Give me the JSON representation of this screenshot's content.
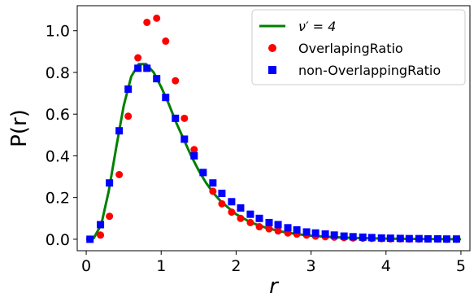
{
  "chart_data": {
    "type": "scatter",
    "xlabel": "r",
    "ylabel": "P(r)",
    "xlim": [
      -0.12,
      5.12
    ],
    "ylim": [
      -0.055,
      1.12
    ],
    "xticks": [
      0,
      1,
      2,
      3,
      4,
      5
    ],
    "xtick_labels": [
      "0",
      "1",
      "2",
      "3",
      "4",
      "5"
    ],
    "yticks": [
      0.0,
      0.2,
      0.4,
      0.6,
      0.8,
      1.0
    ],
    "ytick_labels": [
      "0.0",
      "0.2",
      "0.4",
      "0.6",
      "0.8",
      "1.0"
    ],
    "grid": false,
    "legend_position": "top-right",
    "series": [
      {
        "name": "ν′ = 4",
        "kind": "line",
        "color": "#008000",
        "x": [
          0.0,
          0.1,
          0.2,
          0.3,
          0.4,
          0.5,
          0.6,
          0.7,
          0.8,
          0.9,
          1.0,
          1.1,
          1.2,
          1.3,
          1.4,
          1.5,
          1.6,
          1.7,
          1.8,
          1.9,
          2.0,
          2.2,
          2.4,
          2.6,
          2.8,
          3.0,
          3.3,
          3.6,
          4.0,
          4.5,
          5.0
        ],
        "y": [
          0.0,
          0.005,
          0.07,
          0.23,
          0.44,
          0.64,
          0.78,
          0.84,
          0.84,
          0.8,
          0.73,
          0.65,
          0.56,
          0.48,
          0.4,
          0.33,
          0.27,
          0.22,
          0.18,
          0.15,
          0.12,
          0.08,
          0.055,
          0.037,
          0.025,
          0.017,
          0.01,
          0.006,
          0.003,
          0.001,
          0.0
        ]
      },
      {
        "name": "OverlapingRatio",
        "kind": "circle",
        "color": "#ff0000",
        "x": [
          0.05,
          0.19,
          0.31,
          0.44,
          0.56,
          0.69,
          0.81,
          0.94,
          1.06,
          1.19,
          1.31,
          1.44,
          1.56,
          1.69,
          1.81,
          1.94,
          2.06,
          2.19,
          2.31,
          2.44,
          2.56,
          2.69,
          2.81,
          2.94,
          3.06,
          3.19,
          3.31,
          3.44,
          3.56,
          3.69,
          3.81,
          3.94,
          4.06,
          4.19,
          4.31,
          4.44,
          4.56,
          4.69,
          4.81,
          4.94
        ],
        "y": [
          0.0,
          0.02,
          0.11,
          0.31,
          0.59,
          0.87,
          1.04,
          1.06,
          0.95,
          0.76,
          0.58,
          0.43,
          0.32,
          0.23,
          0.17,
          0.13,
          0.1,
          0.08,
          0.06,
          0.05,
          0.04,
          0.03,
          0.025,
          0.02,
          0.015,
          0.012,
          0.01,
          0.008,
          0.006,
          0.005,
          0.004,
          0.003,
          0.002,
          0.002,
          0.001,
          0.001,
          0.001,
          0.001,
          0.0,
          0.0
        ]
      },
      {
        "name": "non-OverlappingRatio",
        "kind": "square",
        "color": "#0000ff",
        "x": [
          0.05,
          0.19,
          0.31,
          0.44,
          0.56,
          0.69,
          0.81,
          0.94,
          1.06,
          1.19,
          1.31,
          1.44,
          1.56,
          1.69,
          1.81,
          1.94,
          2.06,
          2.19,
          2.31,
          2.44,
          2.56,
          2.69,
          2.81,
          2.94,
          3.06,
          3.19,
          3.31,
          3.44,
          3.56,
          3.69,
          3.81,
          3.94,
          4.06,
          4.19,
          4.31,
          4.44,
          4.56,
          4.69,
          4.81,
          4.94
        ],
        "y": [
          0.0,
          0.07,
          0.27,
          0.52,
          0.72,
          0.82,
          0.82,
          0.77,
          0.68,
          0.58,
          0.48,
          0.4,
          0.32,
          0.27,
          0.22,
          0.18,
          0.15,
          0.12,
          0.1,
          0.08,
          0.07,
          0.055,
          0.045,
          0.035,
          0.03,
          0.025,
          0.02,
          0.015,
          0.012,
          0.01,
          0.008,
          0.006,
          0.005,
          0.004,
          0.003,
          0.003,
          0.002,
          0.002,
          0.001,
          0.001
        ]
      }
    ]
  }
}
